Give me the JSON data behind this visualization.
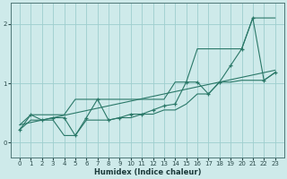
{
  "xlabel": "Humidex (Indice chaleur)",
  "bg_color": "#ceeaea",
  "line_color": "#2a7868",
  "grid_color": "#9ecece",
  "x_data": [
    0,
    1,
    2,
    3,
    4,
    5,
    6,
    7,
    8,
    9,
    10,
    11,
    12,
    13,
    14,
    15,
    16,
    17,
    18,
    19,
    20,
    21,
    22,
    23
  ],
  "y_main": [
    0.22,
    0.47,
    0.38,
    0.42,
    0.42,
    0.12,
    0.42,
    0.73,
    0.38,
    0.42,
    0.48,
    0.48,
    0.55,
    0.62,
    0.65,
    1.02,
    1.02,
    0.82,
    1.02,
    1.3,
    1.58,
    2.1,
    1.05,
    1.18
  ],
  "y_reg": [
    0.3,
    0.34,
    0.38,
    0.42,
    0.46,
    0.5,
    0.54,
    0.58,
    0.62,
    0.66,
    0.7,
    0.74,
    0.78,
    0.82,
    0.86,
    0.9,
    0.94,
    0.98,
    1.02,
    1.06,
    1.1,
    1.14,
    1.18,
    1.22
  ],
  "y_upper": [
    0.3,
    0.47,
    0.47,
    0.47,
    0.47,
    0.73,
    0.73,
    0.73,
    0.73,
    0.73,
    0.73,
    0.73,
    0.73,
    0.73,
    1.02,
    1.02,
    1.58,
    1.58,
    1.58,
    1.58,
    1.58,
    2.1,
    2.1,
    2.1
  ],
  "y_lower": [
    0.22,
    0.38,
    0.38,
    0.38,
    0.12,
    0.12,
    0.38,
    0.38,
    0.38,
    0.42,
    0.42,
    0.48,
    0.48,
    0.55,
    0.55,
    0.65,
    0.82,
    0.82,
    1.02,
    1.02,
    1.05,
    1.05,
    1.05,
    1.18
  ],
  "ylim": [
    -0.25,
    2.35
  ],
  "xlim": [
    -0.8,
    23.8
  ],
  "yticks": [
    0,
    1,
    2
  ],
  "xticks": [
    0,
    1,
    2,
    3,
    4,
    5,
    6,
    7,
    8,
    9,
    10,
    11,
    12,
    13,
    14,
    15,
    16,
    17,
    18,
    19,
    20,
    21,
    22,
    23
  ],
  "xlabel_fontsize": 6.0,
  "tick_fontsize": 5.0
}
